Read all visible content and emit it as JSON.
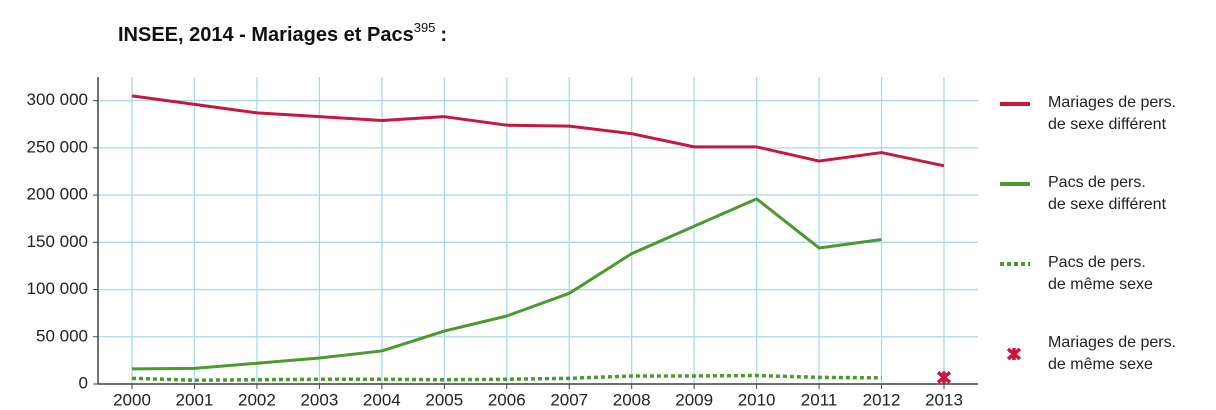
{
  "chart_data": {
    "type": "line",
    "title": "INSEE, 2014 - Mariages et Pacs",
    "title_note": "395",
    "title_suffix": ":",
    "categories": [
      "2000",
      "2001",
      "2002",
      "2003",
      "2004",
      "2005",
      "2006",
      "2007",
      "2008",
      "2009",
      "2010",
      "2011",
      "2012",
      "2013"
    ],
    "series": [
      {
        "name": "Mariages de pers.\nde sexe différent",
        "color": "#c8173d",
        "style": "solid",
        "values": [
          305000,
          296000,
          287000,
          283000,
          279000,
          283000,
          274000,
          273000,
          265000,
          251000,
          251000,
          236000,
          245000,
          231000
        ]
      },
      {
        "name": "Pacs de pers.\nde sexe différent",
        "color": "#4a9a2e",
        "style": "solid",
        "values": [
          16000,
          16500,
          22000,
          27500,
          35000,
          56000,
          72000,
          96000,
          138000,
          167000,
          196000,
          144000,
          153000,
          null
        ]
      },
      {
        "name": "Pacs de pers.\nde même sexe",
        "color": "#4a9a2e",
        "style": "dotted",
        "values": [
          6000,
          4000,
          4500,
          5000,
          5000,
          4500,
          5000,
          6000,
          8500,
          8500,
          9000,
          7000,
          6500,
          null
        ]
      },
      {
        "name": "Mariages de pers.\nde même sexe",
        "color": "#c8173d",
        "style": "marker",
        "values": [
          null,
          null,
          null,
          null,
          null,
          null,
          null,
          null,
          null,
          null,
          null,
          null,
          null,
          7000
        ]
      }
    ],
    "ylim": [
      0,
      325000
    ],
    "yticks": [
      0,
      {
        "value": 50000,
        "label": "50 000"
      },
      {
        "value": 100000,
        "label": "100 000"
      },
      {
        "value": 150000,
        "label": "150 000"
      },
      {
        "value": 200000,
        "label": "200 000"
      },
      {
        "value": 250000,
        "label": "250 000"
      },
      {
        "value": 300000,
        "label": "300 000"
      }
    ],
    "grid": true,
    "grid_color": "#a9d9ec",
    "legend": "right"
  }
}
